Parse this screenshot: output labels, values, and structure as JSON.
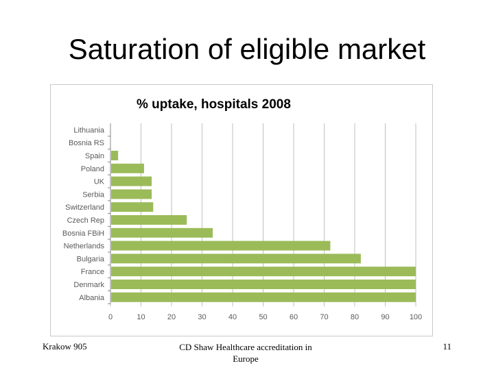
{
  "slide": {
    "title": "Saturation of eligible market"
  },
  "footer": {
    "left": "Krakow 905",
    "center_line1": "CD Shaw Healthcare accreditation in",
    "center_line2": "Europe",
    "right": "11"
  },
  "colors": {
    "bar": "#9bbb59",
    "grid": "#bfbfbf",
    "axis_text": "#595959"
  },
  "chart_data": {
    "type": "bar",
    "orientation": "horizontal",
    "title": "% uptake, hospitals 2008",
    "categories": [
      "Lithuania",
      "Bosnia RS",
      "Spain",
      "Poland",
      "UK",
      "Serbia",
      "Switzerland",
      "Czech Rep",
      "Bosnia FBiH",
      "Netherlands",
      "Bulgaria",
      "France",
      "Denmark",
      "Albania"
    ],
    "values": [
      0,
      0,
      2.5,
      11,
      13.5,
      13.5,
      14,
      25,
      33.5,
      72,
      82,
      100,
      100,
      100
    ],
    "xlim": [
      0,
      100
    ],
    "xticks": [
      0,
      10,
      20,
      30,
      40,
      50,
      60,
      70,
      80,
      90,
      100
    ],
    "grid": true,
    "legend": "none"
  }
}
